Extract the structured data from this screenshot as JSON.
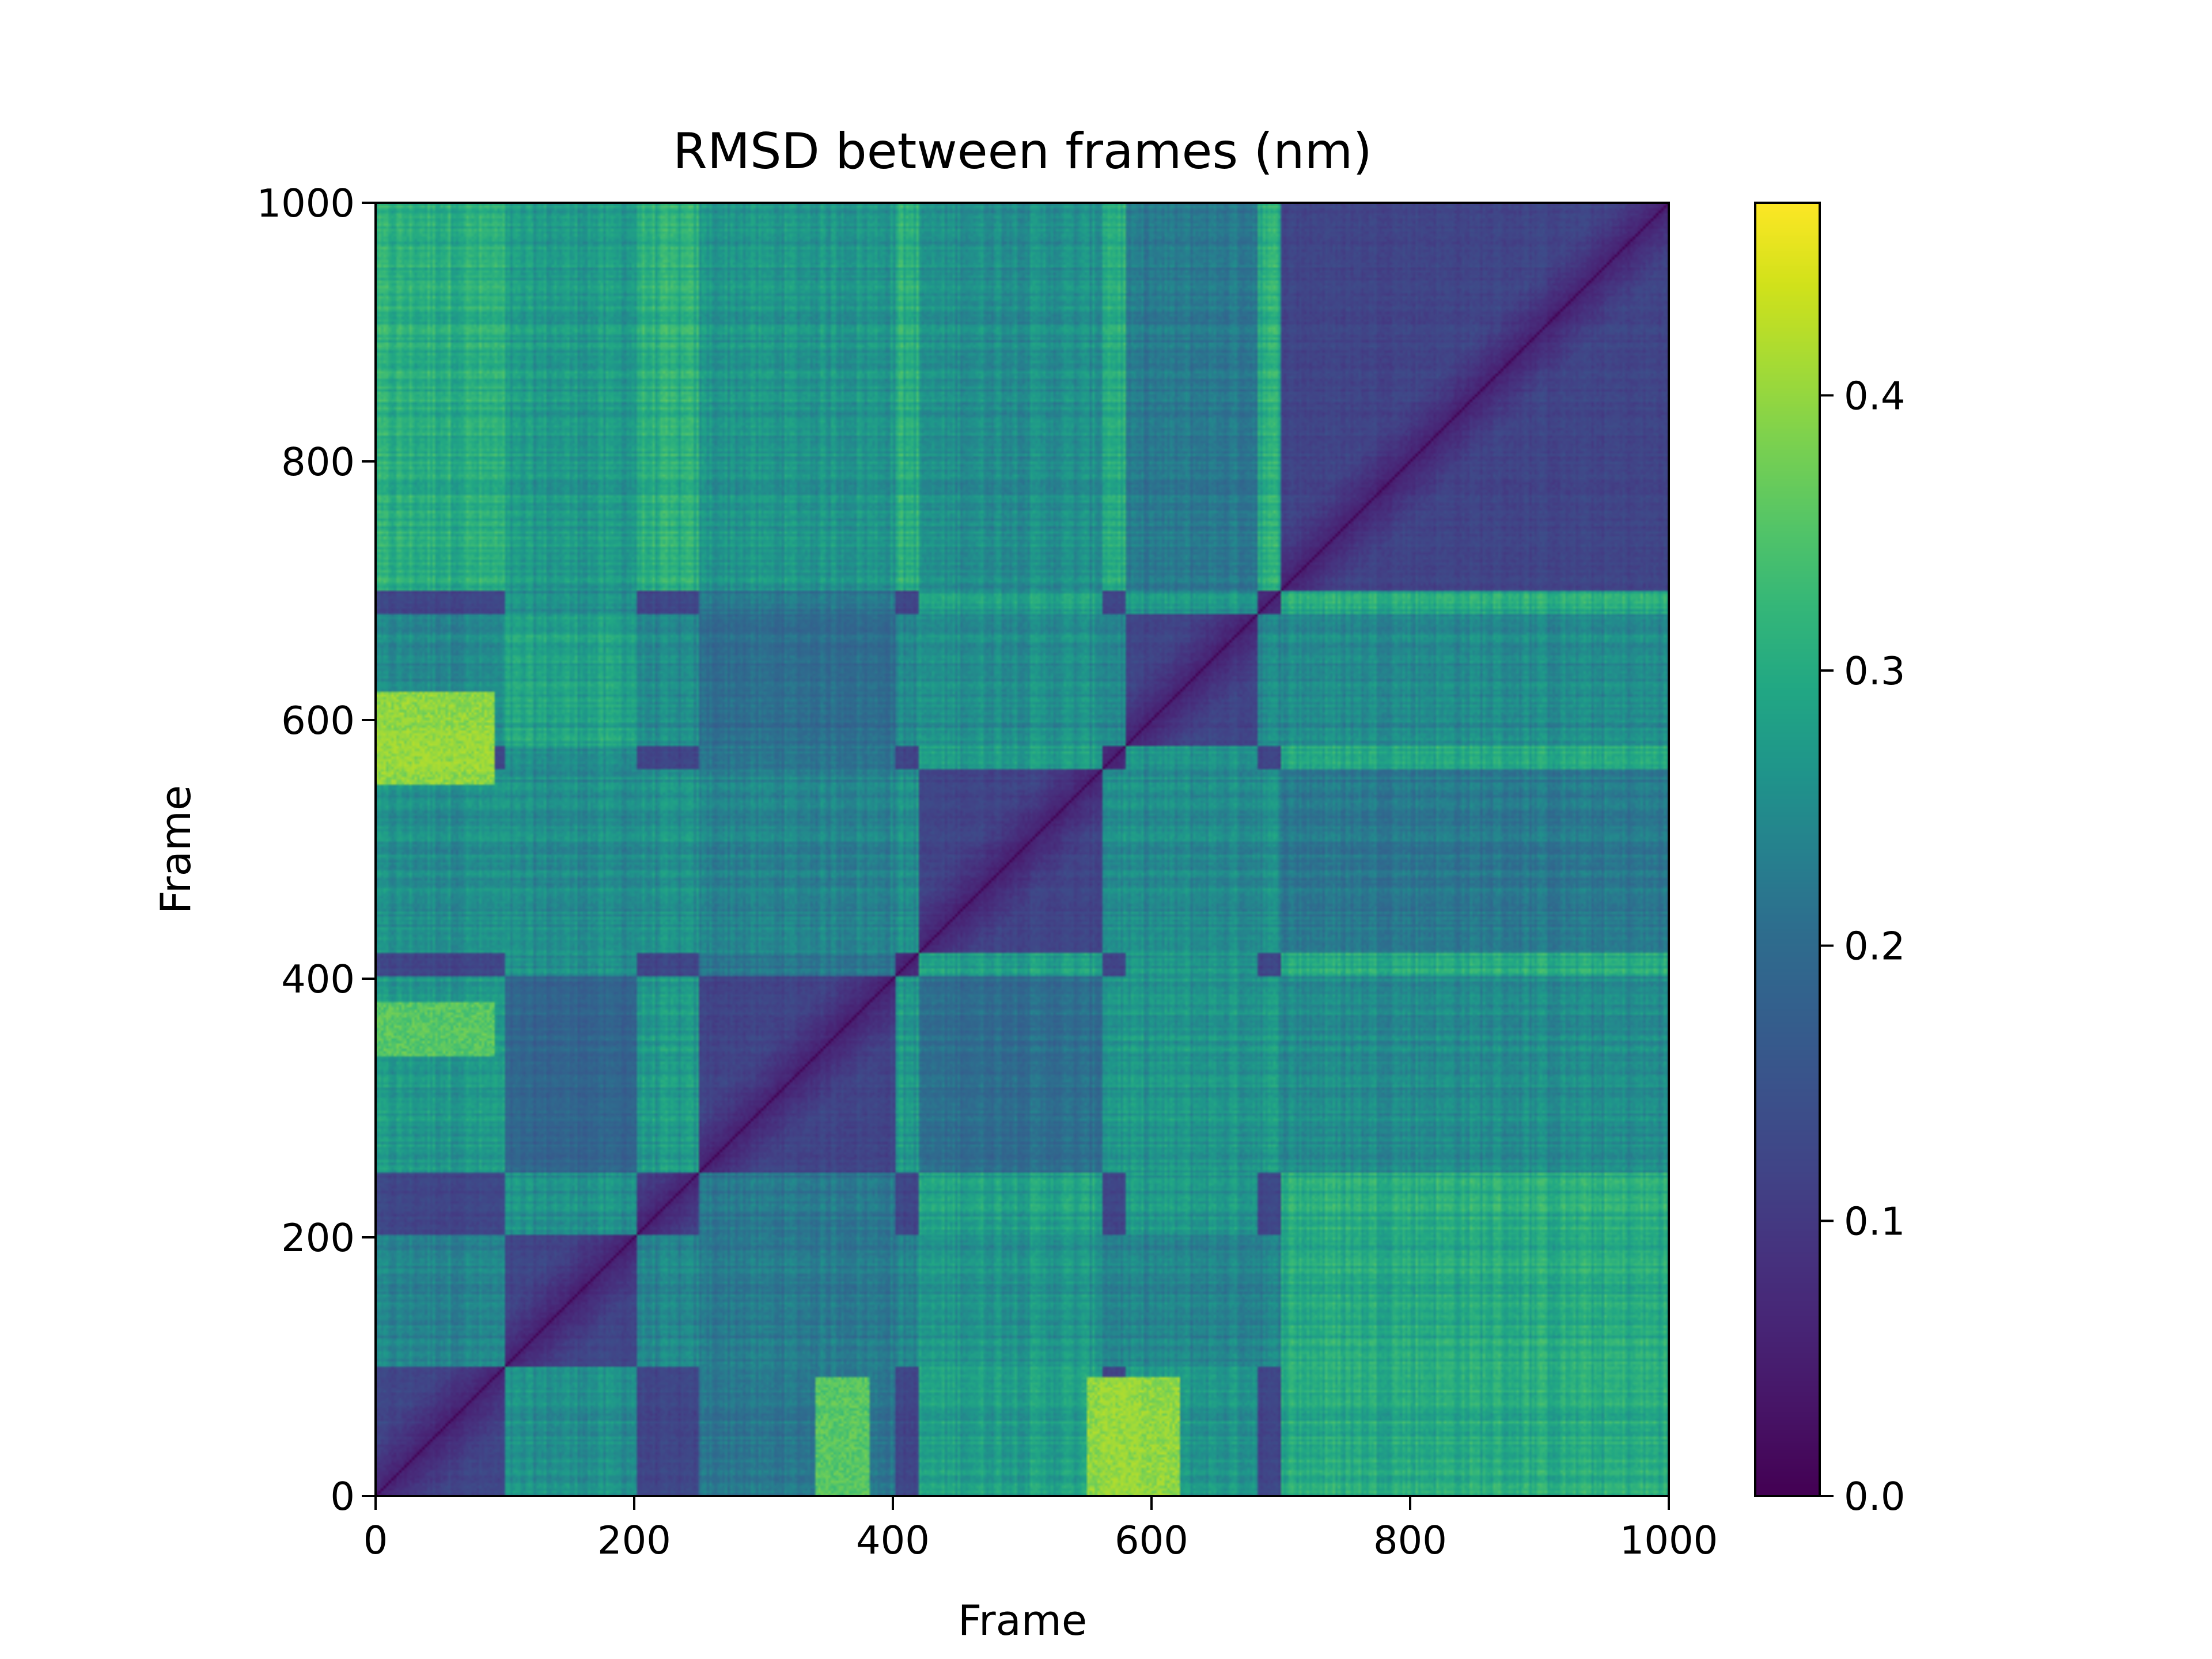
{
  "chart_data": {
    "type": "heatmap",
    "title": "RMSD between frames (nm)",
    "xlabel": "Frame",
    "ylabel": "Frame",
    "xlim": [
      0,
      1000
    ],
    "ylim": [
      0,
      1000
    ],
    "x_ticks": [
      "0",
      "200",
      "400",
      "600",
      "800",
      "1000"
    ],
    "y_ticks": [
      "0",
      "200",
      "400",
      "600",
      "800",
      "1000"
    ],
    "colorbar": {
      "colormap": "viridis",
      "range": [
        0.0,
        0.47
      ],
      "ticks": [
        "0.0",
        "0.1",
        "0.2",
        "0.3",
        "0.4"
      ]
    },
    "diagonal_value": 0.0,
    "structure": {
      "typical_offdiagonal_range": [
        0.1,
        0.3
      ],
      "low_rmsd_blocks_frames": [
        [
          0,
          90
        ],
        [
          100,
          200
        ],
        [
          250,
          400
        ],
        [
          420,
          560
        ],
        [
          580,
          680
        ],
        [
          700,
          1000
        ]
      ],
      "high_rmsd_regions": [
        {
          "x_frames": [
            0,
            90
          ],
          "y_frames": [
            550,
            620
          ],
          "approx_value": 0.42
        },
        {
          "x_frames": [
            560,
            590
          ],
          "y_frames": [
            0,
            90
          ],
          "approx_value": 0.42
        },
        {
          "x_frames": [
            0,
            90
          ],
          "y_frames": [
            340,
            380
          ],
          "approx_value": 0.38
        }
      ]
    },
    "grid": false,
    "legend": "colorbar-right"
  }
}
